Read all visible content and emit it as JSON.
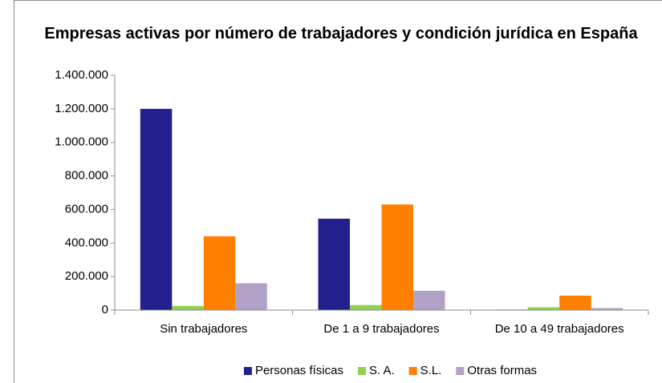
{
  "chart_data": {
    "type": "bar",
    "title": "Empresas activas por número de trabajadores y condición jurídica en España",
    "categories": [
      "Sin trabajadores",
      "De 1 a 9 trabajadores",
      "De 10 a 49 trabajadores"
    ],
    "series": [
      {
        "name": "Personas físicas",
        "color": "#231f8c",
        "values": [
          1200000,
          545000,
          3000
        ]
      },
      {
        "name": "S. A.",
        "color": "#92d050",
        "values": [
          25000,
          30000,
          17000
        ]
      },
      {
        "name": "S.L.",
        "color": "#ff8000",
        "values": [
          440000,
          630000,
          86000
        ]
      },
      {
        "name": "Otras formas",
        "color": "#b3a2c7",
        "values": [
          160000,
          115000,
          12000
        ]
      }
    ],
    "ylim": [
      0,
      1400000
    ],
    "yticks": [
      0,
      {
        "value": 200000,
        "label": "200.000"
      },
      {
        "value": 400000,
        "label": "400.000"
      },
      {
        "value": 600000,
        "label": "600.000"
      },
      {
        "value": 800000,
        "label": "800.000"
      },
      {
        "value": 1000000,
        "label": "1.000.000"
      },
      {
        "value": 1200000,
        "label": "1.200.000"
      },
      {
        "value": 1400000,
        "label": "1.400.000"
      }
    ],
    "legend": "bottom"
  }
}
